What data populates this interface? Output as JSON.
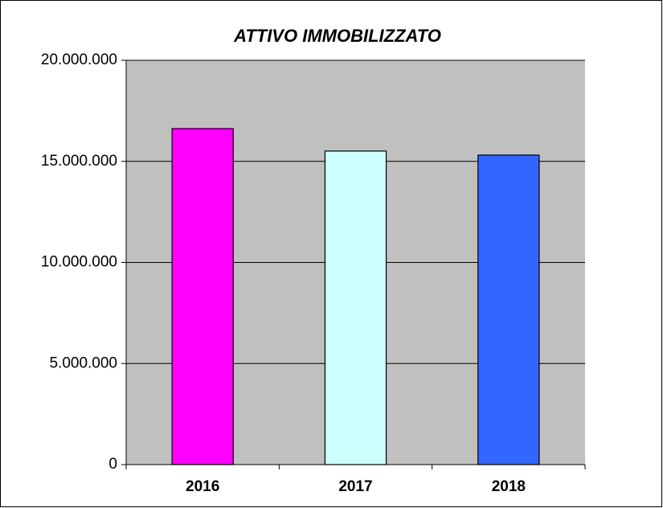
{
  "chart_data": {
    "type": "bar",
    "title": "ATTIVO IMMOBILIZZATO",
    "categories": [
      "2016",
      "2017",
      "2018"
    ],
    "values": [
      16620000,
      15510000,
      15310000
    ],
    "colors": [
      "#ff00ff",
      "#ccffff",
      "#3366ff"
    ],
    "ylim": [
      0,
      20000000
    ],
    "yticks": [
      0,
      {
        "value": 5000000,
        "label": "5.000.000"
      },
      {
        "value": 10000000,
        "label": "10.000.000"
      },
      {
        "value": 15000000,
        "label": "15.000.000"
      },
      {
        "value": 20000000,
        "label": "20.000.000"
      }
    ],
    "grid": true,
    "plot_background": "#c0c0c0"
  }
}
